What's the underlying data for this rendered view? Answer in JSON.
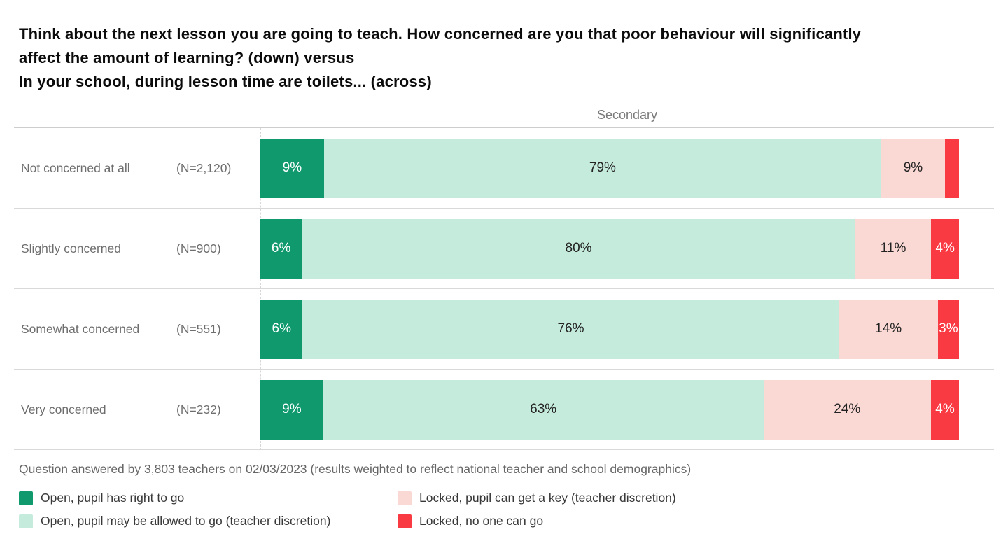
{
  "title": {
    "line1": "Think about the next lesson you are going to teach. How concerned are you that poor behaviour will significantly",
    "line2": "affect the amount of learning? (down) versus",
    "line3": "In your school, during lesson time are toilets... (across)"
  },
  "column_header": "Secondary",
  "footnote": "Question answered by 3,803 teachers on 02/03/2023 (results weighted to reflect national teacher and school demographics)",
  "colors": {
    "open_right": {
      "bg": "#11996E",
      "text": "#ffffff"
    },
    "open_discretion": {
      "bg": "#C5EBDC",
      "text": "#222222"
    },
    "locked_key": {
      "bg": "#FAD8D4",
      "text": "#222222"
    },
    "locked_no_one": {
      "bg": "#FA3A43",
      "text": "#ffffff"
    }
  },
  "legend": [
    {
      "key": "open_right",
      "label": "Open, pupil has right to go"
    },
    {
      "key": "open_discretion",
      "label": "Open, pupil may be allowed to go (teacher discretion)"
    },
    {
      "key": "locked_key",
      "label": "Locked, pupil can get a key (teacher discretion)"
    },
    {
      "key": "locked_no_one",
      "label": "Locked, no one can go"
    }
  ],
  "rows": [
    {
      "label": "Not concerned at all",
      "n": "(N=2,120)",
      "segments": [
        {
          "key": "open_right",
          "value": 9,
          "label": "9%"
        },
        {
          "key": "open_discretion",
          "value": 79,
          "label": "79%"
        },
        {
          "key": "locked_key",
          "value": 9,
          "label": "9%"
        },
        {
          "key": "locked_no_one",
          "value": 2,
          "label": ""
        }
      ]
    },
    {
      "label": "Slightly concerned",
      "n": "(N=900)",
      "segments": [
        {
          "key": "open_right",
          "value": 6,
          "label": "6%"
        },
        {
          "key": "open_discretion",
          "value": 80,
          "label": "80%"
        },
        {
          "key": "locked_key",
          "value": 11,
          "label": "11%"
        },
        {
          "key": "locked_no_one",
          "value": 4,
          "label": "4%"
        }
      ]
    },
    {
      "label": "Somewhat concerned",
      "n": "(N=551)",
      "segments": [
        {
          "key": "open_right",
          "value": 6,
          "label": "6%"
        },
        {
          "key": "open_discretion",
          "value": 76,
          "label": "76%"
        },
        {
          "key": "locked_key",
          "value": 14,
          "label": "14%"
        },
        {
          "key": "locked_no_one",
          "value": 3,
          "label": "3%"
        }
      ]
    },
    {
      "label": "Very concerned",
      "n": "(N=232)",
      "segments": [
        {
          "key": "open_right",
          "value": 9,
          "label": "9%"
        },
        {
          "key": "open_discretion",
          "value": 63,
          "label": "63%"
        },
        {
          "key": "locked_key",
          "value": 24,
          "label": "24%"
        },
        {
          "key": "locked_no_one",
          "value": 4,
          "label": "4%"
        }
      ]
    }
  ],
  "chart_data": {
    "type": "bar",
    "orientation": "horizontal",
    "stacked": true,
    "normalized_to_100_percent": true,
    "title": "Think about the next lesson you are going to teach. How concerned are you that poor behaviour will significantly affect the amount of learning? (down) versus In your school, during lesson time are toilets... (across)",
    "column_group_label": "Secondary",
    "categories": [
      "Not concerned at all",
      "Slightly concerned",
      "Somewhat concerned",
      "Very concerned"
    ],
    "sample_sizes": [
      "(N=2,120)",
      "(N=900)",
      "(N=551)",
      "(N=232)"
    ],
    "series": [
      {
        "name": "Open, pupil has right to go",
        "values": [
          9,
          6,
          6,
          9
        ]
      },
      {
        "name": "Open, pupil may be allowed to go (teacher discretion)",
        "values": [
          79,
          80,
          76,
          63
        ]
      },
      {
        "name": "Locked, pupil can get a key (teacher discretion)",
        "values": [
          9,
          11,
          14,
          24
        ]
      },
      {
        "name": "Locked, no one can go",
        "values": [
          2,
          4,
          3,
          4
        ]
      }
    ],
    "value_unit": "%",
    "xlim": [
      0,
      100
    ],
    "grid": false,
    "legend_position": "bottom",
    "footnote": "Question answered by 3,803 teachers on 02/03/2023 (results weighted to reflect national teacher and school demographics)"
  }
}
